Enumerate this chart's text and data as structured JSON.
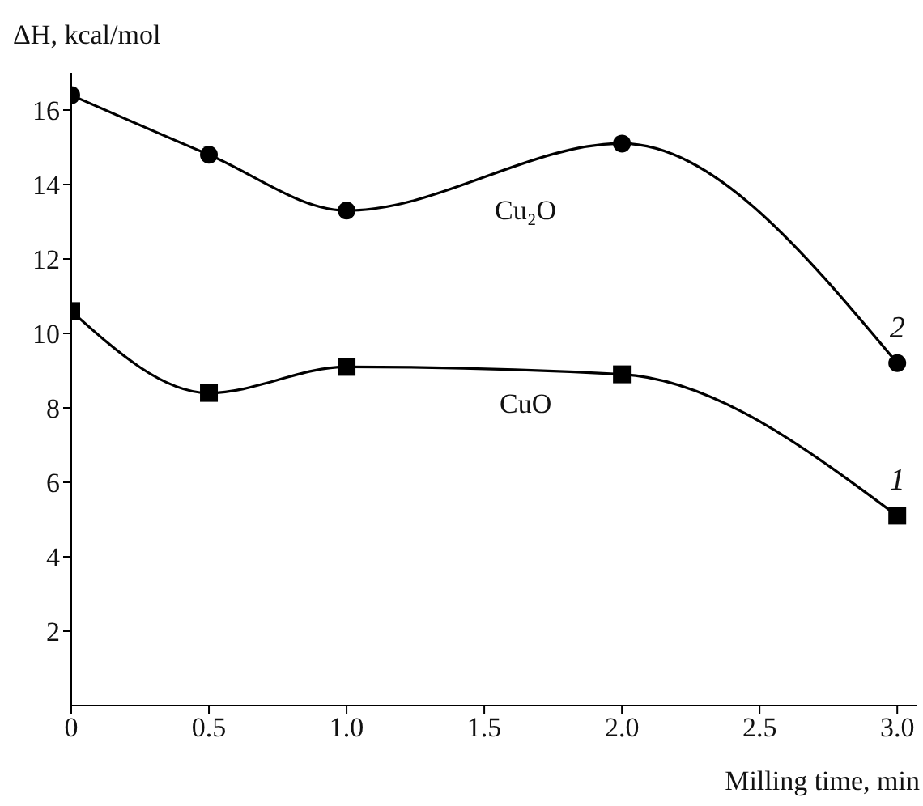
{
  "chart_data": {
    "type": "line",
    "xlabel": "Milling time, min",
    "ylabel": "ΔH, kcal/mol",
    "x": [
      0,
      0.5,
      1,
      2,
      3
    ],
    "series": [
      {
        "name": "CuO",
        "color": "#000000",
        "marker": "square",
        "values": [
          10.6,
          8.4,
          9.1,
          8.9,
          5.1
        ]
      },
      {
        "name": "Cu₂O",
        "color": "#000000",
        "marker": "circle",
        "values": [
          16.4,
          14.8,
          13.3,
          15.1,
          9.2
        ]
      }
    ],
    "annotations": [
      {
        "text": "1",
        "x": 3,
        "y": 5.1
      },
      {
        "text": "2",
        "x": 3,
        "y": 9.2
      }
    ],
    "xlim": [
      0,
      3.07
    ],
    "xticks": [
      0,
      0.5,
      {
        "value": 1,
        "label": "1.0"
      },
      1.5,
      {
        "value": 2,
        "label": "2.0"
      },
      2.5,
      {
        "value": 3,
        "label": "3.0"
      }
    ],
    "ylim": [
      0,
      17
    ],
    "yticks": [
      2,
      4,
      6,
      8,
      10,
      12,
      14,
      16
    ],
    "line_style": "solid"
  }
}
